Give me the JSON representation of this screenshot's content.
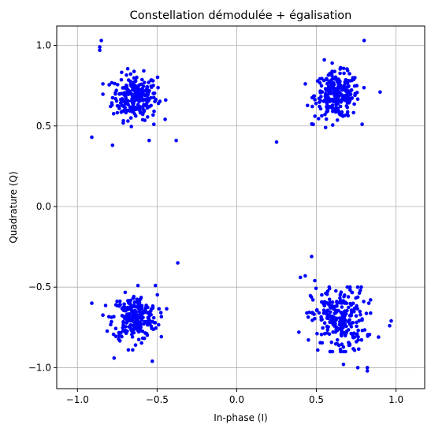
{
  "chart_data": {
    "type": "scatter",
    "title": "Constellation démodulée + égalisation",
    "xlabel": "In-phase (I)",
    "ylabel": "Quadrature (Q)",
    "xlim": [
      -1.13,
      1.18
    ],
    "ylim": [
      -1.13,
      1.12
    ],
    "xticks": [
      -1.0,
      -0.5,
      0.0,
      0.5,
      1.0
    ],
    "xtick_labels": [
      "−1.0",
      "−0.5",
      "0.0",
      "0.5",
      "1.0"
    ],
    "yticks": [
      -1.0,
      -0.5,
      0.0,
      0.5,
      1.0
    ],
    "ytick_labels": [
      "−1.0",
      "−0.5",
      "0.0",
      "0.5",
      "1.0"
    ],
    "grid": true,
    "point_color": "#0000ff",
    "clusters": [
      {
        "center": [
          -0.64,
          0.68
        ],
        "spread": [
          0.07,
          0.07
        ],
        "count": 250
      },
      {
        "center": [
          0.63,
          0.69
        ],
        "spread": [
          0.07,
          0.07
        ],
        "count": 250
      },
      {
        "center": [
          -0.64,
          -0.69
        ],
        "spread": [
          0.07,
          0.07
        ],
        "count": 250
      },
      {
        "center": [
          0.64,
          -0.7
        ],
        "spread": [
          0.085,
          0.1
        ],
        "count": 250
      }
    ],
    "points": [
      [
        -0.85,
        1.03
      ],
      [
        -0.86,
        0.99
      ],
      [
        -0.86,
        0.97
      ],
      [
        -0.91,
        0.43
      ],
      [
        -0.78,
        0.38
      ],
      [
        -0.38,
        0.41
      ],
      [
        -0.55,
        0.41
      ],
      [
        -0.52,
        0.51
      ],
      [
        0.25,
        0.4
      ],
      [
        0.8,
        1.03
      ],
      [
        0.55,
        0.91
      ],
      [
        0.48,
        0.51
      ],
      [
        0.9,
        0.71
      ],
      [
        0.47,
        -0.31
      ],
      [
        0.43,
        -0.43
      ],
      [
        0.4,
        -0.44
      ],
      [
        0.49,
        -0.46
      ],
      [
        0.39,
        -0.78
      ],
      [
        0.97,
        -0.71
      ],
      [
        0.96,
        -0.74
      ],
      [
        0.89,
        -0.81
      ],
      [
        0.82,
        -1.02
      ],
      [
        0.82,
        -1.0
      ],
      [
        0.76,
        -1.0
      ],
      [
        0.67,
        -0.98
      ],
      [
        -0.62,
        -0.49
      ],
      [
        -0.51,
        -0.49
      ],
      [
        -0.77,
        -0.94
      ],
      [
        -0.53,
        -0.96
      ],
      [
        -0.91,
        -0.6
      ],
      [
        -0.37,
        -0.35
      ]
    ]
  }
}
